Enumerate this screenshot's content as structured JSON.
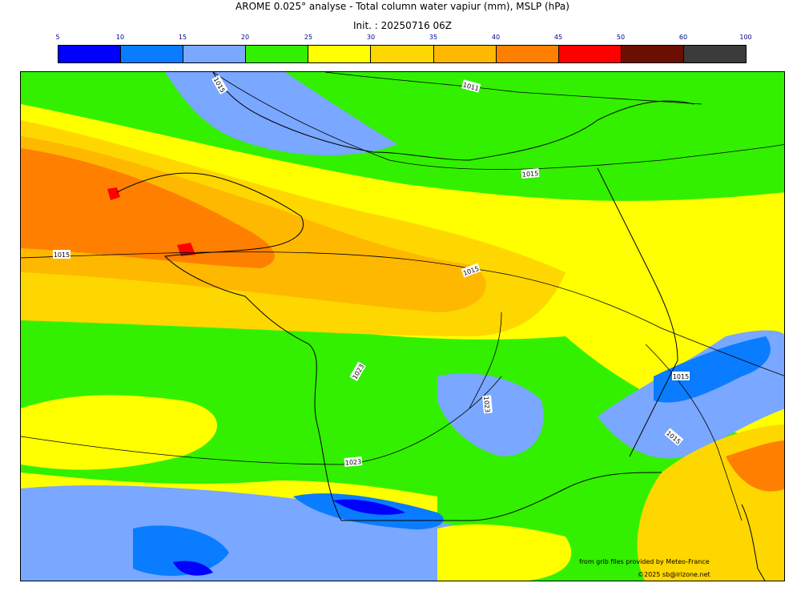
{
  "title": "AROME 0.025° analyse - Total column water vapiur (mm), MSLP (hPa)",
  "subtitle": "Init. : 20250716 06Z",
  "colorbar": {
    "ticks": [
      "5",
      "10",
      "15",
      "20",
      "25",
      "30",
      "35",
      "40",
      "45",
      "50",
      "60",
      "100"
    ],
    "colors": [
      "#0000ff",
      "#0a7cff",
      "#7aa7ff",
      "#32f000",
      "#ffff00",
      "#ffd700",
      "#ffb800",
      "#ff8000",
      "#ff0000",
      "#6b0f00",
      "#3b3b3b"
    ]
  },
  "isobars": {
    "labels": [
      "1015",
      "1011",
      "1015",
      "1015",
      "1015",
      "1023",
      "1023",
      "1023",
      "1015",
      "1015"
    ]
  },
  "credits": {
    "line1": "from grib files provided by Meteo-France",
    "line2": "©2025 sb@irizone.net"
  }
}
